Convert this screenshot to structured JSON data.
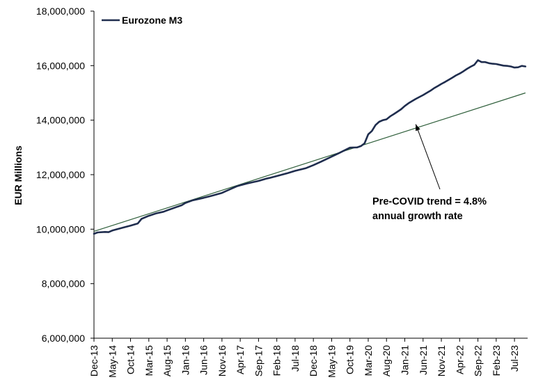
{
  "chart_data": {
    "type": "line",
    "title": "",
    "xlabel": "",
    "ylabel": "EUR Millions",
    "ylim": [
      6000000,
      18000000
    ],
    "y_ticks": [
      6000000,
      8000000,
      10000000,
      12000000,
      14000000,
      16000000,
      18000000
    ],
    "y_tick_labels": [
      "6,000,000",
      "8,000,000",
      "10,000,000",
      "12,000,000",
      "14,000,000",
      "16,000,000",
      "18,000,000"
    ],
    "x_tick_labels": [
      "Dec-13",
      "May-14",
      "Oct-14",
      "Mar-15",
      "Aug-15",
      "Jan-16",
      "Jun-16",
      "Nov-16",
      "Apr-17",
      "Sep-17",
      "Feb-18",
      "Jul-18",
      "Dec-18",
      "May-19",
      "Oct-19",
      "Mar-20",
      "Aug-20",
      "Jan-21",
      "Jun-21",
      "Nov-21",
      "Apr-22",
      "Sep-22",
      "Feb-23",
      "Jul-23"
    ],
    "x_range": [
      "Dec-13",
      "Oct-23"
    ],
    "grid": false,
    "legend_position": "top-left",
    "colors": {
      "m3": "#1f2d4e",
      "trend": "#2e5e3a",
      "annotation_arrow": "#000000"
    },
    "series": [
      {
        "name": "Eurozone M3",
        "x": [
          "Dec-13",
          "Jan-14",
          "Mar-14",
          "Apr-14",
          "May-14",
          "Aug-14",
          "Oct-14",
          "Dec-14",
          "Jan-15",
          "Mar-15",
          "May-15",
          "Jul-15",
          "Aug-15",
          "Dec-15",
          "Jan-16",
          "Mar-16",
          "Jun-16",
          "Aug-16",
          "Nov-16",
          "Jan-17",
          "Mar-17",
          "Apr-17",
          "Jun-17",
          "Sep-17",
          "Nov-17",
          "Dec-17",
          "Feb-18",
          "May-18",
          "Jul-18",
          "Oct-18",
          "Dec-18",
          "Feb-19",
          "May-19",
          "Jul-19",
          "Oct-19",
          "Dec-19",
          "Jan-20",
          "Feb-20",
          "Mar-20",
          "Apr-20",
          "May-20",
          "Jun-20",
          "Jul-20",
          "Aug-20",
          "Sep-20",
          "Oct-20",
          "Nov-20",
          "Dec-20",
          "Jan-21",
          "Feb-21",
          "Mar-21",
          "Apr-21",
          "May-21",
          "Jun-21",
          "Jul-21",
          "Aug-21",
          "Sep-21",
          "Oct-21",
          "Nov-21",
          "Dec-21",
          "Jan-22",
          "Feb-22",
          "Mar-22",
          "Apr-22",
          "May-22",
          "Jun-22",
          "Jul-22",
          "Aug-22",
          "Sep-22",
          "Oct-22",
          "Nov-22",
          "Dec-22",
          "Jan-23",
          "Feb-23",
          "Mar-23",
          "Apr-23",
          "May-23",
          "Jun-23",
          "Jul-23",
          "Aug-23",
          "Sep-23",
          "Oct-23"
        ],
        "values": [
          9830000,
          9880000,
          9900000,
          9890000,
          9950000,
          10060000,
          10130000,
          10210000,
          10380000,
          10490000,
          10580000,
          10640000,
          10690000,
          10880000,
          10960000,
          11060000,
          11150000,
          11220000,
          11330000,
          11450000,
          11570000,
          11610000,
          11680000,
          11770000,
          11850000,
          11880000,
          11950000,
          12060000,
          12140000,
          12240000,
          12350000,
          12470000,
          12660000,
          12790000,
          12990000,
          13000000,
          13050000,
          13150000,
          13480000,
          13600000,
          13820000,
          13940000,
          14000000,
          14030000,
          14140000,
          14220000,
          14310000,
          14400000,
          14520000,
          14620000,
          14700000,
          14780000,
          14850000,
          14920000,
          15000000,
          15080000,
          15170000,
          15250000,
          15330000,
          15400000,
          15480000,
          15560000,
          15640000,
          15710000,
          15790000,
          15880000,
          15960000,
          16030000,
          16200000,
          16130000,
          16130000,
          16090000,
          16070000,
          16060000,
          16030000,
          16000000,
          15990000,
          15970000,
          15930000,
          15940000,
          15990000,
          15970000
        ]
      },
      {
        "name": "",
        "x": [
          "Dec-13",
          "Oct-23"
        ],
        "values": [
          9920000,
          15000000
        ]
      }
    ],
    "annotations": [
      {
        "text_lines": [
          "Pre-COVID trend = 4.8%",
          "annual growth rate"
        ],
        "points_to": {
          "x": "Apr-21",
          "y": 13850000
        }
      }
    ]
  }
}
